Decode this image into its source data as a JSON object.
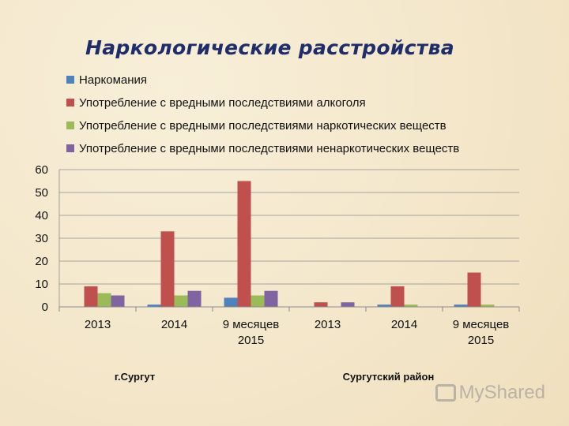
{
  "chart_data": {
    "type": "bar",
    "title": "Наркологические расстройства",
    "categories": [
      "2013",
      "2014",
      "9 месяцев\n2015",
      "2013",
      "2014",
      "9 месяцев\n2015"
    ],
    "groups": [
      {
        "label": "г.Сургут",
        "span": [
          0,
          2
        ]
      },
      {
        "label": "Сургутский район",
        "span": [
          3,
          5
        ]
      }
    ],
    "series": [
      {
        "name": "Наркомания",
        "color": "#4f81bd",
        "values": [
          0,
          1,
          4,
          0,
          1,
          1
        ]
      },
      {
        "name": "Употребление с вредными последствиями алкоголя",
        "color": "#c0504d",
        "values": [
          9,
          33,
          55,
          2,
          9,
          15
        ]
      },
      {
        "name": "Употребление с вредными последствиями наркотических веществ",
        "color": "#9bbb59",
        "values": [
          6,
          5,
          5,
          0,
          1,
          1
        ]
      },
      {
        "name": "Употребление с вредными последствиями ненаркотических веществ",
        "color": "#8064a2",
        "values": [
          5,
          7,
          7,
          2,
          0,
          0
        ]
      }
    ],
    "ylim": [
      0,
      60
    ],
    "yticks": [
      0,
      10,
      20,
      30,
      40,
      50,
      60
    ],
    "grid": true,
    "legend_position": "top"
  },
  "watermark": "MyShared"
}
